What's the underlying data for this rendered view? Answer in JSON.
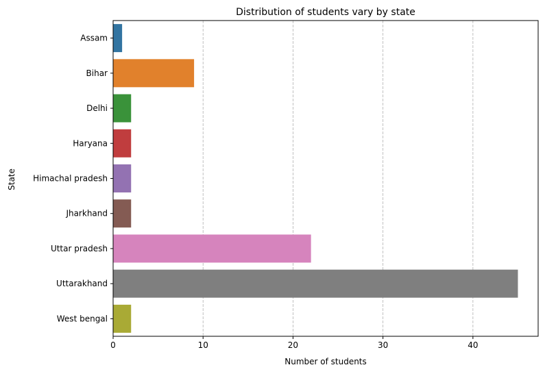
{
  "chart_data": {
    "type": "bar",
    "orientation": "horizontal",
    "title": "Distribution of students vary by state",
    "xlabel": "Number of students",
    "ylabel": "State",
    "categories": [
      "Assam",
      "Bihar",
      "Delhi",
      "Haryana",
      "Himachal pradesh",
      "Jharkhand",
      "Uttar pradesh",
      "Uttarakhand",
      "West bengal"
    ],
    "values": [
      1,
      9,
      2,
      2,
      2,
      2,
      22,
      45,
      2
    ],
    "colors": [
      "#3274a1",
      "#e1812c",
      "#3a923a",
      "#c03d3e",
      "#9372b2",
      "#845b53",
      "#d684bd",
      "#7f7f7f",
      "#a9aa35"
    ],
    "xlim": [
      0,
      47.25
    ],
    "xticks": [
      0,
      10,
      20,
      30,
      40
    ],
    "grid": "x-dashed"
  }
}
